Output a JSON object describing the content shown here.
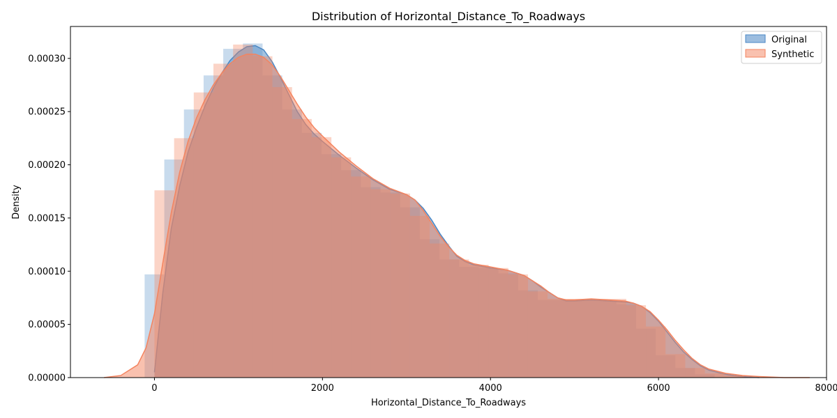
{
  "chart_data": {
    "type": "area",
    "title": "Distribution of Horizontal_Distance_To_Roadways",
    "xlabel": "Horizontal_Distance_To_Roadways",
    "ylabel": "Density",
    "xlim": [
      -1000,
      8000
    ],
    "ylim": [
      0,
      0.00033
    ],
    "xticks": [
      0,
      2000,
      4000,
      6000,
      8000
    ],
    "xtick_labels": [
      "0",
      "2000",
      "4000",
      "6000",
      "8000"
    ],
    "yticks": [
      0,
      5e-05,
      0.0001,
      0.00015,
      0.0002,
      0.00025,
      0.0003
    ],
    "ytick_labels": [
      "0.00000",
      "0.00005",
      "0.00010",
      "0.00015",
      "0.00020",
      "0.00025",
      "0.00030"
    ],
    "grid": false,
    "legend_position": "top-right",
    "series": [
      {
        "name": "Original",
        "color": "#4a87c4",
        "hist_bin_width": 234,
        "hist_bins_x": [
          0,
          234,
          468,
          702,
          936,
          1170,
          1404,
          1638,
          1872,
          2106,
          2340,
          2574,
          2808,
          3042,
          3276,
          3510,
          3744,
          3978,
          4212,
          4446,
          4680,
          4914,
          5148,
          5382,
          5616,
          5850,
          6084,
          6318,
          6552
        ],
        "hist_density": [
          9.7e-05,
          0.000205,
          0.000252,
          0.000284,
          0.000309,
          0.000314,
          0.000284,
          0.000252,
          0.00023,
          0.00021,
          0.000195,
          0.000179,
          0.000174,
          0.00016,
          0.00013,
          0.000111,
          0.000104,
          0.000103,
          9.8e-05,
          8.2e-05,
          7.3e-05,
          7.3e-05,
          7.3e-05,
          7.3e-05,
          6.9e-05,
          4.6e-05,
          2.1e-05,
          9e-06,
          3e-06
        ],
        "kde_x": [
          0,
          100,
          200,
          300,
          400,
          500,
          600,
          700,
          800,
          900,
          1000,
          1100,
          1200,
          1300,
          1400,
          1500,
          1600,
          1700,
          1800,
          1900,
          2000,
          2200,
          2400,
          2600,
          2800,
          3000,
          3100,
          3200,
          3300,
          3400,
          3500,
          3600,
          3700,
          3800,
          4000,
          4200,
          4400,
          4500,
          4600,
          4700,
          4800,
          4900,
          5000,
          5200,
          5400,
          5600,
          5700,
          5800,
          5900,
          6000,
          6100,
          6200,
          6300,
          6400,
          6500,
          6600,
          6800,
          7000,
          7200
        ],
        "kde_y": [
          5e-06,
          8e-05,
          0.00014,
          0.00018,
          0.000212,
          0.000235,
          0.000255,
          0.000272,
          0.000286,
          0.000298,
          0.000306,
          0.000311,
          0.000312,
          0.000308,
          0.000297,
          0.000282,
          0.000266,
          0.00025,
          0.000238,
          0.000229,
          0.000222,
          0.000209,
          0.000197,
          0.000186,
          0.000177,
          0.000172,
          0.000167,
          0.000159,
          0.000148,
          0.000135,
          0.000124,
          0.000114,
          0.000109,
          0.000106,
          0.000103,
          0.000101,
          9.6e-05,
          9.1e-05,
          8.5e-05,
          8e-05,
          7.5e-05,
          7.2e-05,
          7.2e-05,
          7.3e-05,
          7.2e-05,
          7.1e-05,
          7e-05,
          6.7e-05,
          6.1e-05,
          5.3e-05,
          4.3e-05,
          3.3e-05,
          2.4e-05,
          1.7e-05,
          1.1e-05,
          7e-06,
          3e-06,
          1e-06,
          0
        ]
      },
      {
        "name": "Synthetic",
        "color": "#f4845f",
        "hist_bin_width": 234,
        "hist_bins_x": [
          117,
          351,
          585,
          819,
          1053,
          1287,
          1521,
          1755,
          1989,
          2223,
          2457,
          2691,
          2925,
          3159,
          3393,
          3627,
          3861,
          4095,
          4329,
          4563,
          4797,
          5031,
          5265,
          5499,
          5733,
          5967,
          6201,
          6435,
          6669,
          6903
        ],
        "hist_density": [
          0.000176,
          0.000225,
          0.000268,
          0.000295,
          0.000313,
          0.000302,
          0.000273,
          0.000243,
          0.000226,
          0.000207,
          0.000189,
          0.000177,
          0.000173,
          0.000152,
          0.000126,
          0.000111,
          0.000106,
          0.000103,
          9.7e-05,
          8.1e-05,
          7.4e-05,
          7.4e-05,
          7.4e-05,
          7.4e-05,
          6.8e-05,
          4.8e-05,
          2.2e-05,
          9e-06,
          4e-06,
          2e-06
        ],
        "kde_x": [
          -600,
          -400,
          -200,
          -100,
          0,
          100,
          200,
          300,
          400,
          500,
          600,
          700,
          800,
          900,
          1000,
          1100,
          1200,
          1300,
          1400,
          1500,
          1600,
          1700,
          1800,
          1900,
          2000,
          2200,
          2400,
          2600,
          2800,
          3000,
          3100,
          3200,
          3300,
          3400,
          3500,
          3600,
          3700,
          3800,
          4000,
          4200,
          4400,
          4500,
          4600,
          4700,
          4800,
          4900,
          5000,
          5200,
          5400,
          5600,
          5700,
          5800,
          5900,
          6000,
          6100,
          6200,
          6300,
          6400,
          6500,
          6600,
          6800,
          7000,
          7200,
          7500,
          7800
        ],
        "kde_y": [
          0,
          2e-06,
          1.2e-05,
          2.8e-05,
          6e-05,
          0.000108,
          0.000155,
          0.000193,
          0.000222,
          0.000244,
          0.000261,
          0.000275,
          0.000286,
          0.000295,
          0.000301,
          0.000304,
          0.000304,
          0.000301,
          0.000294,
          0.000283,
          0.00027,
          0.000257,
          0.000245,
          0.000235,
          0.000227,
          0.000212,
          0.000199,
          0.000187,
          0.000178,
          0.000172,
          0.000167,
          0.000157,
          0.000145,
          0.000133,
          0.000123,
          0.000115,
          0.00011,
          0.000107,
          0.000104,
          0.000101,
          9.6e-05,
          9.1e-05,
          8.6e-05,
          8e-05,
          7.5e-05,
          7.3e-05,
          7.3e-05,
          7.4e-05,
          7.3e-05,
          7.2e-05,
          7e-05,
          6.7e-05,
          6.2e-05,
          5.4e-05,
          4.5e-05,
          3.5e-05,
          2.6e-05,
          1.8e-05,
          1.2e-05,
          8e-06,
          4e-06,
          2e-06,
          1e-06,
          0,
          0
        ]
      }
    ]
  }
}
